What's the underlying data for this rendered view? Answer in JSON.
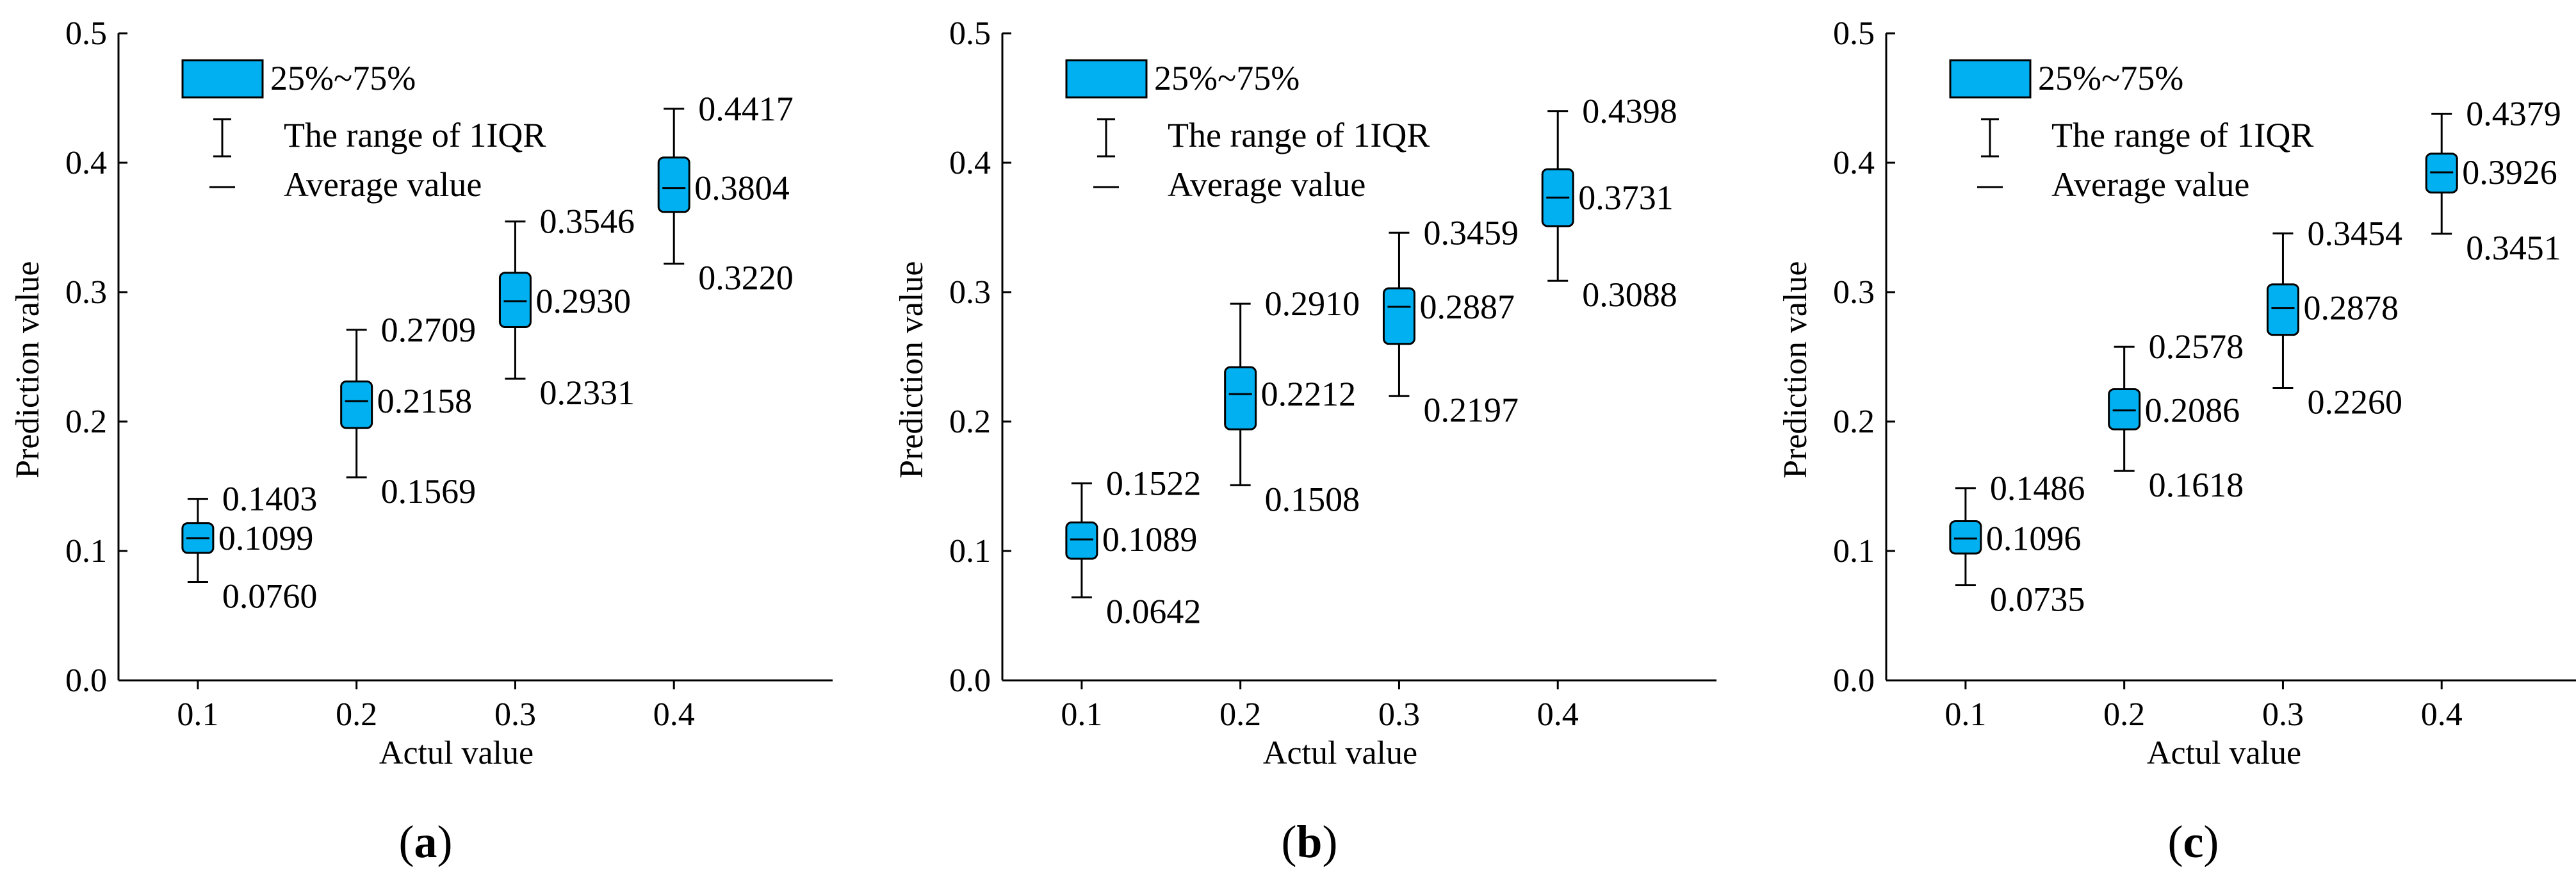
{
  "figure": {
    "legend": {
      "box_label": "25%~75%",
      "whisker_label": "The range of 1IQR",
      "mean_label": "Average value"
    },
    "colors": {
      "box_fill": "#00b0f0",
      "stroke": "#000000"
    }
  },
  "chart_data": [
    {
      "type": "box",
      "caption": {
        "open": "(",
        "letter": "a",
        "close": ")"
      },
      "xlabel": "Actul value",
      "ylabel": "Prediction value",
      "xlim": [
        0.05,
        0.5
      ],
      "ylim": [
        0.0,
        0.5
      ],
      "x_ticks": [
        "0.1",
        "0.2",
        "0.3",
        "0.4"
      ],
      "y_ticks": [
        "0.0",
        "0.1",
        "0.2",
        "0.3",
        "0.4",
        "0.5"
      ],
      "boxes": [
        {
          "x": 0.1,
          "whisker_high": 0.1403,
          "q3": 0.1215,
          "mean": 0.1099,
          "q1": 0.0985,
          "whisker_low": 0.076,
          "labels": {
            "high": "0.1403",
            "mean": "0.1099",
            "low": "0.0760"
          }
        },
        {
          "x": 0.2,
          "whisker_high": 0.2709,
          "q3": 0.231,
          "mean": 0.2158,
          "q1": 0.195,
          "whisker_low": 0.1569,
          "labels": {
            "high": "0.2709",
            "mean": "0.2158",
            "low": "0.1569"
          }
        },
        {
          "x": 0.3,
          "whisker_high": 0.3546,
          "q3": 0.315,
          "mean": 0.293,
          "q1": 0.273,
          "whisker_low": 0.2331,
          "labels": {
            "high": "0.3546",
            "mean": "0.2930",
            "low": "0.2331"
          }
        },
        {
          "x": 0.4,
          "whisker_high": 0.4417,
          "q3": 0.404,
          "mean": 0.3804,
          "q1": 0.362,
          "whisker_low": 0.322,
          "labels": {
            "high": "0.4417",
            "mean": "0.3804",
            "low": "0.3220"
          }
        }
      ]
    },
    {
      "type": "box",
      "caption": {
        "open": "(",
        "letter": "b",
        "close": ")"
      },
      "xlabel": "Actul value",
      "ylabel": "Prediction value",
      "xlim": [
        0.05,
        0.5
      ],
      "ylim": [
        0.0,
        0.5
      ],
      "x_ticks": [
        "0.1",
        "0.2",
        "0.3",
        "0.4"
      ],
      "y_ticks": [
        "0.0",
        "0.1",
        "0.2",
        "0.3",
        "0.4",
        "0.5"
      ],
      "boxes": [
        {
          "x": 0.1,
          "whisker_high": 0.1522,
          "q3": 0.122,
          "mean": 0.1089,
          "q1": 0.094,
          "whisker_low": 0.0642,
          "labels": {
            "high": "0.1522",
            "mean": "0.1089",
            "low": "0.0642"
          }
        },
        {
          "x": 0.2,
          "whisker_high": 0.291,
          "q3": 0.242,
          "mean": 0.2212,
          "q1": 0.194,
          "whisker_low": 0.1508,
          "labels": {
            "high": "0.2910",
            "mean": "0.2212",
            "low": "0.1508"
          }
        },
        {
          "x": 0.3,
          "whisker_high": 0.3459,
          "q3": 0.303,
          "mean": 0.2887,
          "q1": 0.26,
          "whisker_low": 0.2197,
          "labels": {
            "high": "0.3459",
            "mean": "0.2887",
            "low": "0.2197"
          }
        },
        {
          "x": 0.4,
          "whisker_high": 0.4398,
          "q3": 0.395,
          "mean": 0.3731,
          "q1": 0.351,
          "whisker_low": 0.3088,
          "labels": {
            "high": "0.4398",
            "mean": "0.3731",
            "low": "0.3088"
          }
        }
      ]
    },
    {
      "type": "box",
      "caption": {
        "open": "(",
        "letter": "c",
        "close": ")"
      },
      "xlabel": "Actul value",
      "ylabel": "Prediction value",
      "xlim": [
        0.05,
        0.5
      ],
      "ylim": [
        0.0,
        0.5
      ],
      "x_ticks": [
        "0.1",
        "0.2",
        "0.3",
        "0.4"
      ],
      "y_ticks": [
        "0.0",
        "0.1",
        "0.2",
        "0.3",
        "0.4",
        "0.5"
      ],
      "boxes": [
        {
          "x": 0.1,
          "whisker_high": 0.1486,
          "q3": 0.123,
          "mean": 0.1096,
          "q1": 0.098,
          "whisker_low": 0.0735,
          "labels": {
            "high": "0.1486",
            "mean": "0.1096",
            "low": "0.0735"
          }
        },
        {
          "x": 0.2,
          "whisker_high": 0.2578,
          "q3": 0.225,
          "mean": 0.2086,
          "q1": 0.194,
          "whisker_low": 0.1618,
          "labels": {
            "high": "0.2578",
            "mean": "0.2086",
            "low": "0.1618"
          }
        },
        {
          "x": 0.3,
          "whisker_high": 0.3454,
          "q3": 0.306,
          "mean": 0.2878,
          "q1": 0.267,
          "whisker_low": 0.226,
          "labels": {
            "high": "0.3454",
            "mean": "0.2878",
            "low": "0.2260"
          }
        },
        {
          "x": 0.4,
          "whisker_high": 0.4379,
          "q3": 0.407,
          "mean": 0.3926,
          "q1": 0.377,
          "whisker_low": 0.3451,
          "labels": {
            "high": "0.4379",
            "mean": "0.3926",
            "low": "0.3451"
          }
        }
      ]
    }
  ]
}
